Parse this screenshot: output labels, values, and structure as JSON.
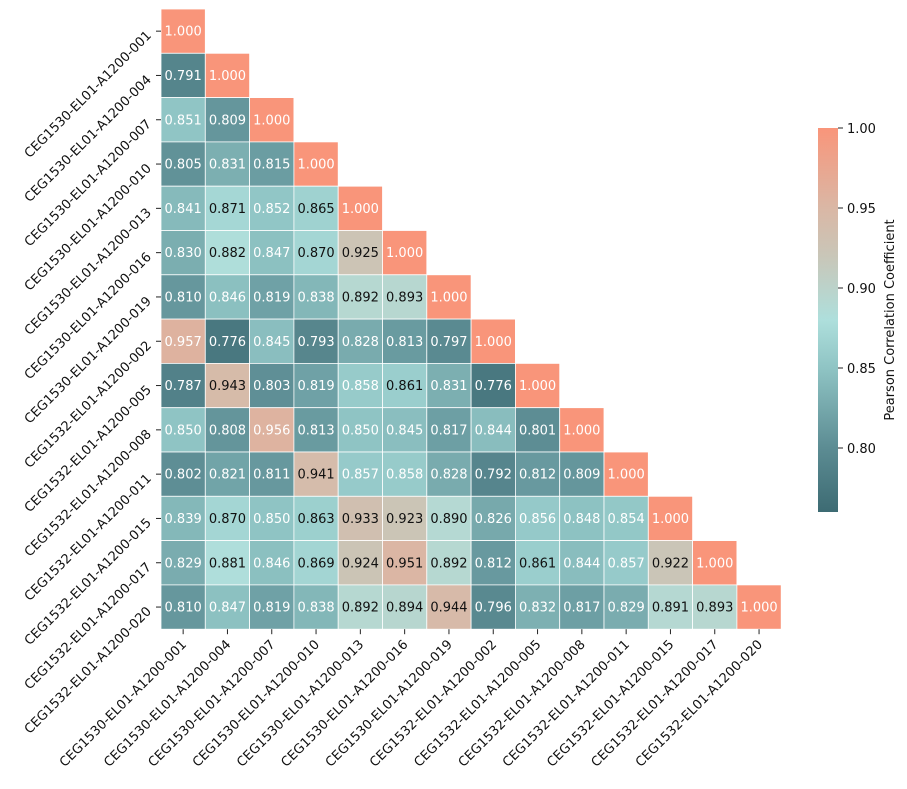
{
  "chart_data": {
    "type": "heatmap",
    "title": "",
    "labels": [
      "CEG1530-EL01-A1200-001",
      "CEG1530-EL01-A1200-004",
      "CEG1530-EL01-A1200-007",
      "CEG1530-EL01-A1200-010",
      "CEG1530-EL01-A1200-013",
      "CEG1530-EL01-A1200-016",
      "CEG1530-EL01-A1200-019",
      "CEG1532-EL01-A1200-002",
      "CEG1532-EL01-A1200-005",
      "CEG1532-EL01-A1200-008",
      "CEG1532-EL01-A1200-011",
      "CEG1532-EL01-A1200-015",
      "CEG1532-EL01-A1200-017",
      "CEG1532-EL01-A1200-020"
    ],
    "matrix_lower": [
      [
        1.0
      ],
      [
        0.791,
        1.0
      ],
      [
        0.851,
        0.809,
        1.0
      ],
      [
        0.805,
        0.831,
        0.815,
        1.0
      ],
      [
        0.841,
        0.871,
        0.852,
        0.865,
        1.0
      ],
      [
        0.83,
        0.882,
        0.847,
        0.87,
        0.925,
        1.0
      ],
      [
        0.81,
        0.846,
        0.819,
        0.838,
        0.892,
        0.893,
        1.0
      ],
      [
        0.957,
        0.776,
        0.845,
        0.793,
        0.828,
        0.813,
        0.797,
        1.0
      ],
      [
        0.787,
        0.943,
        0.803,
        0.819,
        0.858,
        0.861,
        0.831,
        0.776,
        1.0
      ],
      [
        0.85,
        0.808,
        0.956,
        0.813,
        0.85,
        0.845,
        0.817,
        0.844,
        0.801,
        1.0
      ],
      [
        0.802,
        0.821,
        0.811,
        0.941,
        0.857,
        0.858,
        0.828,
        0.792,
        0.812,
        0.809,
        1.0
      ],
      [
        0.839,
        0.87,
        0.85,
        0.863,
        0.933,
        0.923,
        0.89,
        0.826,
        0.856,
        0.848,
        0.854,
        1.0
      ],
      [
        0.829,
        0.881,
        0.846,
        0.869,
        0.924,
        0.951,
        0.892,
        0.812,
        0.861,
        0.844,
        0.857,
        0.922,
        1.0
      ],
      [
        0.81,
        0.847,
        0.819,
        0.838,
        0.892,
        0.894,
        0.944,
        0.796,
        0.832,
        0.817,
        0.829,
        0.891,
        0.893,
        1.0
      ]
    ],
    "value_format_decimals": 3,
    "colorbar": {
      "label": "Pearson Correlation Coefficient",
      "range": [
        0.76,
        1.0
      ],
      "ticks": [
        0.8,
        0.85,
        0.9,
        0.95,
        1.0
      ],
      "tick_labels": [
        "0.80",
        "0.85",
        "0.90",
        "0.95",
        "1.00"
      ]
    },
    "colormap": {
      "stops": [
        {
          "v": 0.76,
          "color": "#3d6b73"
        },
        {
          "v": 0.8,
          "color": "#5c8c93"
        },
        {
          "v": 0.85,
          "color": "#8fc4c4"
        },
        {
          "v": 0.88,
          "color": "#aedfdc"
        },
        {
          "v": 0.92,
          "color": "#c9c6b8"
        },
        {
          "v": 0.95,
          "color": "#dab7a5"
        },
        {
          "v": 1.0,
          "color": "#f9957a"
        }
      ],
      "dark_text_range": [
        0.86,
        0.955
      ]
    }
  }
}
